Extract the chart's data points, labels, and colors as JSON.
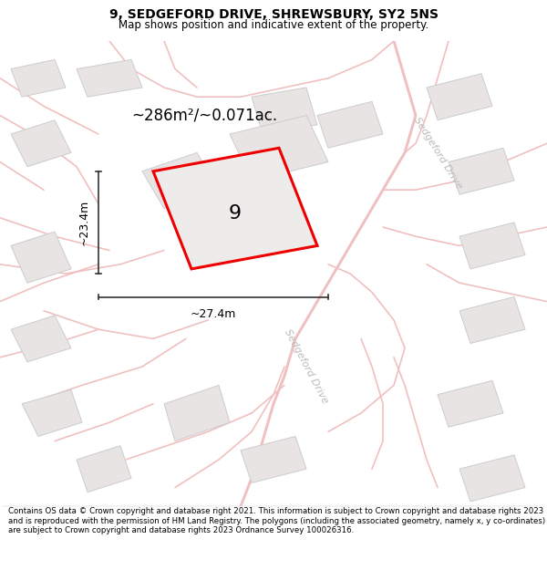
{
  "title": "9, SEDGEFORD DRIVE, SHREWSBURY, SY2 5NS",
  "subtitle": "Map shows position and indicative extent of the property.",
  "footer": "Contains OS data © Crown copyright and database right 2021. This information is subject to Crown copyright and database rights 2023 and is reproduced with the permission of HM Land Registry. The polygons (including the associated geometry, namely x, y co-ordinates) are subject to Crown copyright and database rights 2023 Ordnance Survey 100026316.",
  "area_label": "~286m²/~0.071ac.",
  "property_number": "9",
  "dim_width": "~27.4m",
  "dim_height": "~23.4m",
  "bg_color": "#ffffff",
  "map_bg": "#f7f4f4",
  "road_color": "#f0c0c0",
  "road_lw": 1.2,
  "building_fill": "#e8e4e4",
  "building_outline": "#cccccc",
  "property_fill": "#eeebeb",
  "property_outline": "#ee0000",
  "road_label_color": "#bbbbbb",
  "dim_line_color": "#333333"
}
